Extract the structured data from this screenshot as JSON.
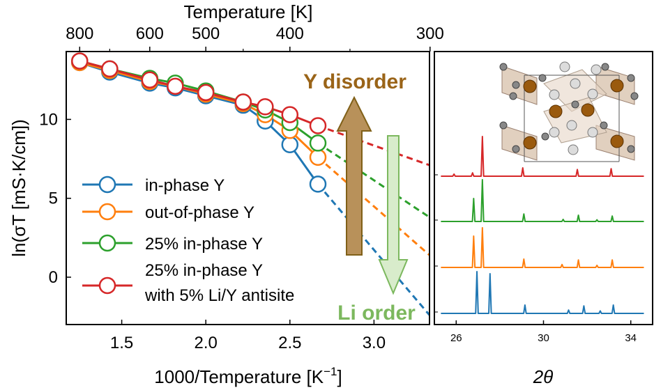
{
  "colors": {
    "in_phase": "#1f77b4",
    "out_of_phase": "#ff7f0e",
    "in_phase_25": "#2ca02c",
    "antisite": "#d62728",
    "y_disorder": "#9a6418",
    "y_arrow_fill": "#b8915a",
    "li_order": "#7cb85e",
    "li_arrow_fill": "#d8eccb"
  },
  "chart_data": [
    {
      "type": "line",
      "xlabel": "1000/Temperature [K",
      "xlabel_sup": "−1",
      "xlabel_end": "]",
      "ylabel": "ln(σT [mS·K/cm])",
      "top_xlabel": "Temperature [K]",
      "xlim": [
        1.17,
        3.33
      ],
      "ylim": [
        -3.0,
        14.3
      ],
      "xticks": [
        1.5,
        2.0,
        2.5,
        3.0
      ],
      "xtick_labels": [
        "1.5",
        "2.0",
        "2.5",
        "3.0"
      ],
      "yticks": [
        0,
        5,
        10
      ],
      "ytick_labels": [
        "0",
        "5",
        "10"
      ],
      "top_ticks": [
        800,
        600,
        500,
        400,
        300
      ],
      "top_tick_labels": [
        "800",
        "600",
        "500",
        "400",
        "300"
      ],
      "top_minor_ticks": [
        700,
        450,
        350
      ],
      "legend_position": "lower-left",
      "series": [
        {
          "name": "in-phase Y",
          "color_key": "in_phase",
          "x": [
            1.25,
            1.4286,
            1.6667,
            1.8182,
            2.0,
            2.2222,
            2.3529,
            2.5,
            2.6667
          ],
          "y": [
            13.6,
            13.0,
            12.3,
            12.0,
            11.5,
            10.9,
            9.9,
            8.4,
            5.9
          ],
          "extrapolation": {
            "x": [
              2.6667,
              3.33
            ],
            "y": [
              5.9,
              -2.4
            ]
          }
        },
        {
          "name": "out-of-phase Y",
          "color_key": "out_of_phase",
          "x": [
            1.25,
            1.4286,
            1.6667,
            1.8182,
            2.0,
            2.2222,
            2.3529,
            2.5,
            2.6667
          ],
          "y": [
            13.6,
            13.1,
            12.4,
            12.1,
            11.6,
            11.0,
            10.3,
            9.3,
            7.6
          ],
          "extrapolation": {
            "x": [
              2.6667,
              3.33
            ],
            "y": [
              7.6,
              1.4
            ]
          }
        },
        {
          "name": "25% in-phase Y",
          "color_key": "in_phase_25",
          "x": [
            1.25,
            1.4286,
            1.6667,
            1.8182,
            2.0,
            2.2222,
            2.3529,
            2.5,
            2.6667
          ],
          "y": [
            13.7,
            13.2,
            12.6,
            12.3,
            11.8,
            11.1,
            10.6,
            9.8,
            8.5
          ],
          "extrapolation": {
            "x": [
              2.6667,
              3.33
            ],
            "y": [
              8.5,
              3.8
            ]
          }
        },
        {
          "name": "25% in-phase Y",
          "name_line2": "with 5% Li/Y antisite",
          "color_key": "antisite",
          "x": [
            1.25,
            1.4286,
            1.6667,
            1.8182,
            2.0,
            2.2222,
            2.3529,
            2.5,
            2.6667
          ],
          "y": [
            13.7,
            13.2,
            12.5,
            12.1,
            11.7,
            11.1,
            10.8,
            10.3,
            9.6
          ],
          "extrapolation": {
            "x": [
              2.6667,
              3.33
            ],
            "y": [
              9.6,
              7.1
            ]
          }
        }
      ],
      "annotations": [
        {
          "text": "Y disorder",
          "color_key": "y_disorder"
        },
        {
          "text": "Li order",
          "color_key": "li_order"
        }
      ]
    },
    {
      "type": "line",
      "title": "",
      "xlabel": "2θ",
      "xlim": [
        25.0,
        35.0
      ],
      "xticks": [
        26,
        30,
        34
      ],
      "xtick_labels": [
        "26",
        "30",
        "34"
      ],
      "grid": false,
      "inset": "crystal-structure",
      "series": [
        {
          "color_key": "in_phase",
          "peaks": [
            [
              26.95,
              1.0
            ],
            [
              27.55,
              0.95
            ],
            [
              29.15,
              0.2
            ],
            [
              31.15,
              0.08
            ],
            [
              31.85,
              0.18
            ],
            [
              32.6,
              0.06
            ],
            [
              33.2,
              0.2
            ]
          ]
        },
        {
          "color_key": "out_of_phase",
          "peaks": [
            [
              26.8,
              0.75
            ],
            [
              27.2,
              0.95
            ],
            [
              29.1,
              0.2
            ],
            [
              30.85,
              0.07
            ],
            [
              31.6,
              0.18
            ],
            [
              32.45,
              0.05
            ],
            [
              33.15,
              0.18
            ]
          ]
        },
        {
          "color_key": "in_phase_25",
          "peaks": [
            [
              26.8,
              0.55
            ],
            [
              27.2,
              1.0
            ],
            [
              29.1,
              0.18
            ],
            [
              30.9,
              0.05
            ],
            [
              31.6,
              0.15
            ],
            [
              32.45,
              0.04
            ],
            [
              33.15,
              0.13
            ]
          ]
        },
        {
          "color_key": "antisite",
          "peaks": [
            [
              25.9,
              0.05
            ],
            [
              26.75,
              0.08
            ],
            [
              27.2,
              0.95
            ],
            [
              29.05,
              0.2
            ],
            [
              31.55,
              0.16
            ],
            [
              33.1,
              0.18
            ]
          ]
        }
      ]
    }
  ]
}
